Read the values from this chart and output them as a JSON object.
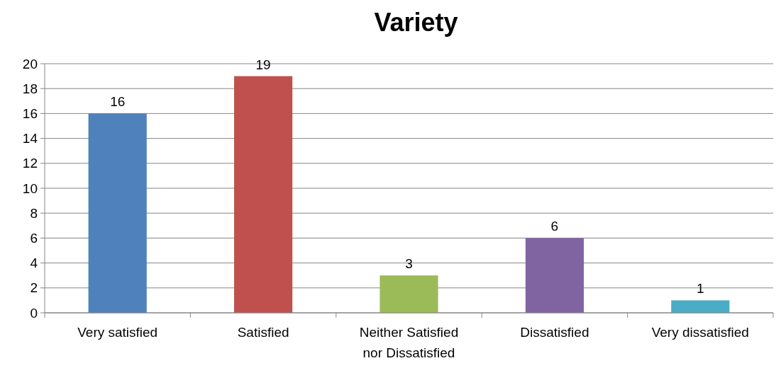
{
  "chart_data": {
    "type": "bar",
    "title": "Variety",
    "categories": [
      "Very satisfied",
      "Satisfied",
      "Neither Satisfied nor Dissatisfied",
      "Dissatisfied",
      "Very dissatisfied"
    ],
    "values": [
      16,
      19,
      3,
      6,
      1
    ],
    "colors": [
      "#4f81bd",
      "#c0504d",
      "#9bbb59",
      "#8064a2",
      "#4bacc6"
    ],
    "ylim": [
      0,
      20
    ],
    "yticks": [
      0,
      2,
      4,
      6,
      8,
      10,
      12,
      14,
      16,
      18,
      20
    ],
    "grid": "y",
    "data_labels": true
  }
}
